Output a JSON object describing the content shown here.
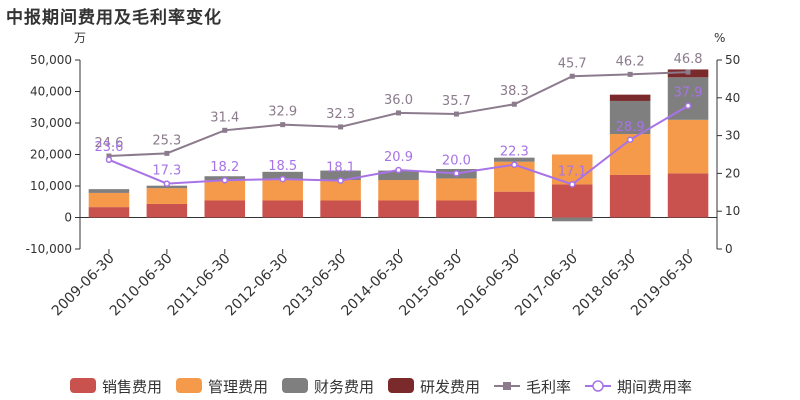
{
  "title": "中报期间费用及毛利率变化",
  "chart_data": {
    "type": "bar",
    "stacked": true,
    "title": "中报期间费用及毛利率变化",
    "left_unit": "万",
    "right_unit": "%",
    "left_ylim": [
      -10000,
      50000
    ],
    "left_ticks": [
      "-10,000",
      "0",
      "10,000",
      "20,000",
      "30,000",
      "40,000",
      "50,000"
    ],
    "right_ylim": [
      0,
      50
    ],
    "right_ticks": [
      "0",
      "10",
      "20",
      "30",
      "40",
      "50"
    ],
    "categories": [
      "2009-06-30",
      "2010-06-30",
      "2011-06-30",
      "2012-06-30",
      "2013-06-30",
      "2014-06-30",
      "2015-06-30",
      "2016-06-30",
      "2017-06-30",
      "2018-06-30",
      "2019-06-30"
    ],
    "series": [
      {
        "name": "销售费用",
        "color": "#c9514e",
        "values": [
          3300,
          4300,
          5400,
          5400,
          5400,
          5400,
          5400,
          8200,
          10500,
          13500,
          14000
        ]
      },
      {
        "name": "管理费用",
        "color": "#f59a4a",
        "values": [
          4500,
          5000,
          6500,
          6500,
          6500,
          6500,
          7000,
          9500,
          9500,
          13000,
          17000
        ]
      },
      {
        "name": "财务费用",
        "color": "#7f7f7f",
        "values": [
          1200,
          800,
          1200,
          2600,
          3000,
          3000,
          3000,
          1300,
          -1200,
          10500,
          13500
        ]
      },
      {
        "name": "研发费用",
        "color": "#7a2a2a",
        "values": [
          0,
          0,
          0,
          0,
          0,
          0,
          0,
          0,
          0,
          2000,
          2500
        ]
      }
    ],
    "lines": [
      {
        "name": "毛利率",
        "color": "#8c7b8c",
        "marker": "square",
        "axis": "right",
        "values": [
          24.6,
          25.3,
          31.4,
          32.9,
          32.3,
          36.0,
          35.7,
          38.3,
          45.7,
          46.2,
          46.8
        ],
        "labels": [
          "24.6",
          "25.3",
          "31.4",
          "32.9",
          "32.3",
          "36.0",
          "35.7",
          "38.3",
          "45.7",
          "46.2",
          "46.8"
        ]
      },
      {
        "name": "期间费用率",
        "color": "#a873e6",
        "marker": "circle",
        "axis": "right",
        "values": [
          23.6,
          17.3,
          18.2,
          18.5,
          18.1,
          20.9,
          20.0,
          22.3,
          17.1,
          28.9,
          37.9
        ],
        "labels": [
          "23.6",
          "17.3",
          "18.2",
          "18.5",
          "18.1",
          "20.9",
          "20.0",
          "22.3",
          "17.1",
          "28.9",
          "37.9"
        ]
      }
    ],
    "legend_position": "bottom"
  }
}
